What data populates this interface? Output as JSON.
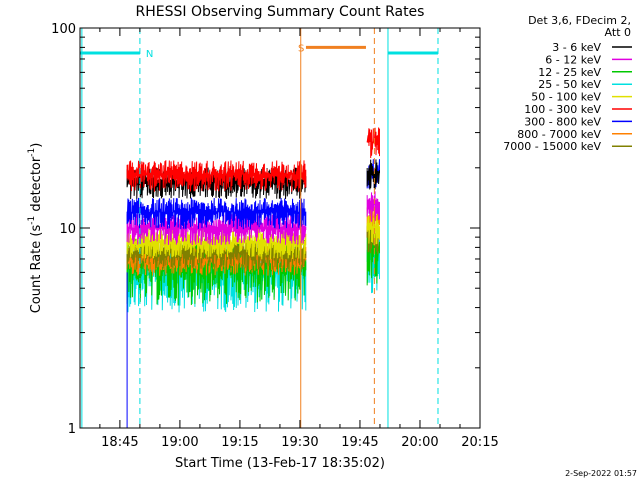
{
  "chart_data": {
    "type": "line",
    "title": "RHESSI Observing Summary Count Rates",
    "xlabel": "Start Time (13-Feb-17 18:35:02)",
    "ylabel_main": "Count Rate (s",
    "ylabel_sup1": "-1",
    "ylabel_mid": " detector",
    "ylabel_sup2": "-1",
    "ylabel_end": ")",
    "yscale": "log",
    "ylim": [
      1,
      100
    ],
    "xlim_minutes": [
      35.03,
      135.0
    ],
    "x_ticks": [
      {
        "label": "18:45",
        "min": 45
      },
      {
        "label": "19:00",
        "min": 60
      },
      {
        "label": "19:15",
        "min": 75
      },
      {
        "label": "19:30",
        "min": 90
      },
      {
        "label": "19:45",
        "min": 105
      },
      {
        "label": "20:00",
        "min": 120
      },
      {
        "label": "20:15",
        "min": 135
      }
    ],
    "y_ticks": [
      {
        "label": "1",
        "value": 1
      },
      {
        "label": "10",
        "value": 10
      },
      {
        "label": "100",
        "value": 100
      }
    ],
    "legend_header": [
      "Det 3,6, FDecim 2,",
      "Att 0"
    ],
    "series": [
      {
        "name": "3 - 6 keV",
        "color": "#000000",
        "level1": 17,
        "level2": 19
      },
      {
        "name": "6 - 12 keV",
        "color": "#e000e0",
        "level1": 10,
        "level2": 13
      },
      {
        "name": "12 - 25 keV",
        "color": "#00c800",
        "level1": 6.5,
        "level2": 8
      },
      {
        "name": "25 - 50 keV",
        "color": "#00e0e0",
        "level1": 6,
        "level2": 7
      },
      {
        "name": "50 - 100 keV",
        "color": "#e0e000",
        "level1": 8.5,
        "level2": 10
      },
      {
        "name": "100 - 300 keV",
        "color": "#ff0000",
        "level1": 18.5,
        "level2": 27
      },
      {
        "name": "300 - 800 keV",
        "color": "#0000ff",
        "level1": 12,
        "level2": 19
      },
      {
        "name": "800 - 7000 keV",
        "color": "#ff8000",
        "level1": 7,
        "level2": 11
      },
      {
        "name": "7000 - 15000 keV",
        "color": "#808000",
        "level1": 7.5,
        "level2": 9
      }
    ],
    "data_intervals_minutes": [
      [
        46.8,
        91.5
      ],
      [
        106.8,
        110.0
      ]
    ],
    "flags": [
      {
        "label": "N",
        "color": "#00e0e0",
        "y": 75,
        "x0": 35.03,
        "x1": 50.0,
        "label_min": 51.5
      },
      {
        "label": "",
        "color": "#00e0e0",
        "y": 75,
        "x0": 112.0,
        "x1": 124.5
      },
      {
        "label": "S",
        "color": "#f08020",
        "y": 80,
        "x0": 91.5,
        "x1": 106.5,
        "label_min": 89.5
      }
    ],
    "vlines": [
      {
        "min": 35.5,
        "color": "#00e0e0",
        "dash": false
      },
      {
        "min": 50.0,
        "color": "#00e0e0",
        "dash": true
      },
      {
        "min": 112.0,
        "color": "#00e0e0",
        "dash": false
      },
      {
        "min": 124.5,
        "color": "#00e0e0",
        "dash": true
      },
      {
        "min": 90.2,
        "color": "#f08020",
        "dash": false
      },
      {
        "min": 108.6,
        "color": "#f08020",
        "dash": true
      }
    ],
    "footer": "2-Sep-2022 01:57"
  }
}
